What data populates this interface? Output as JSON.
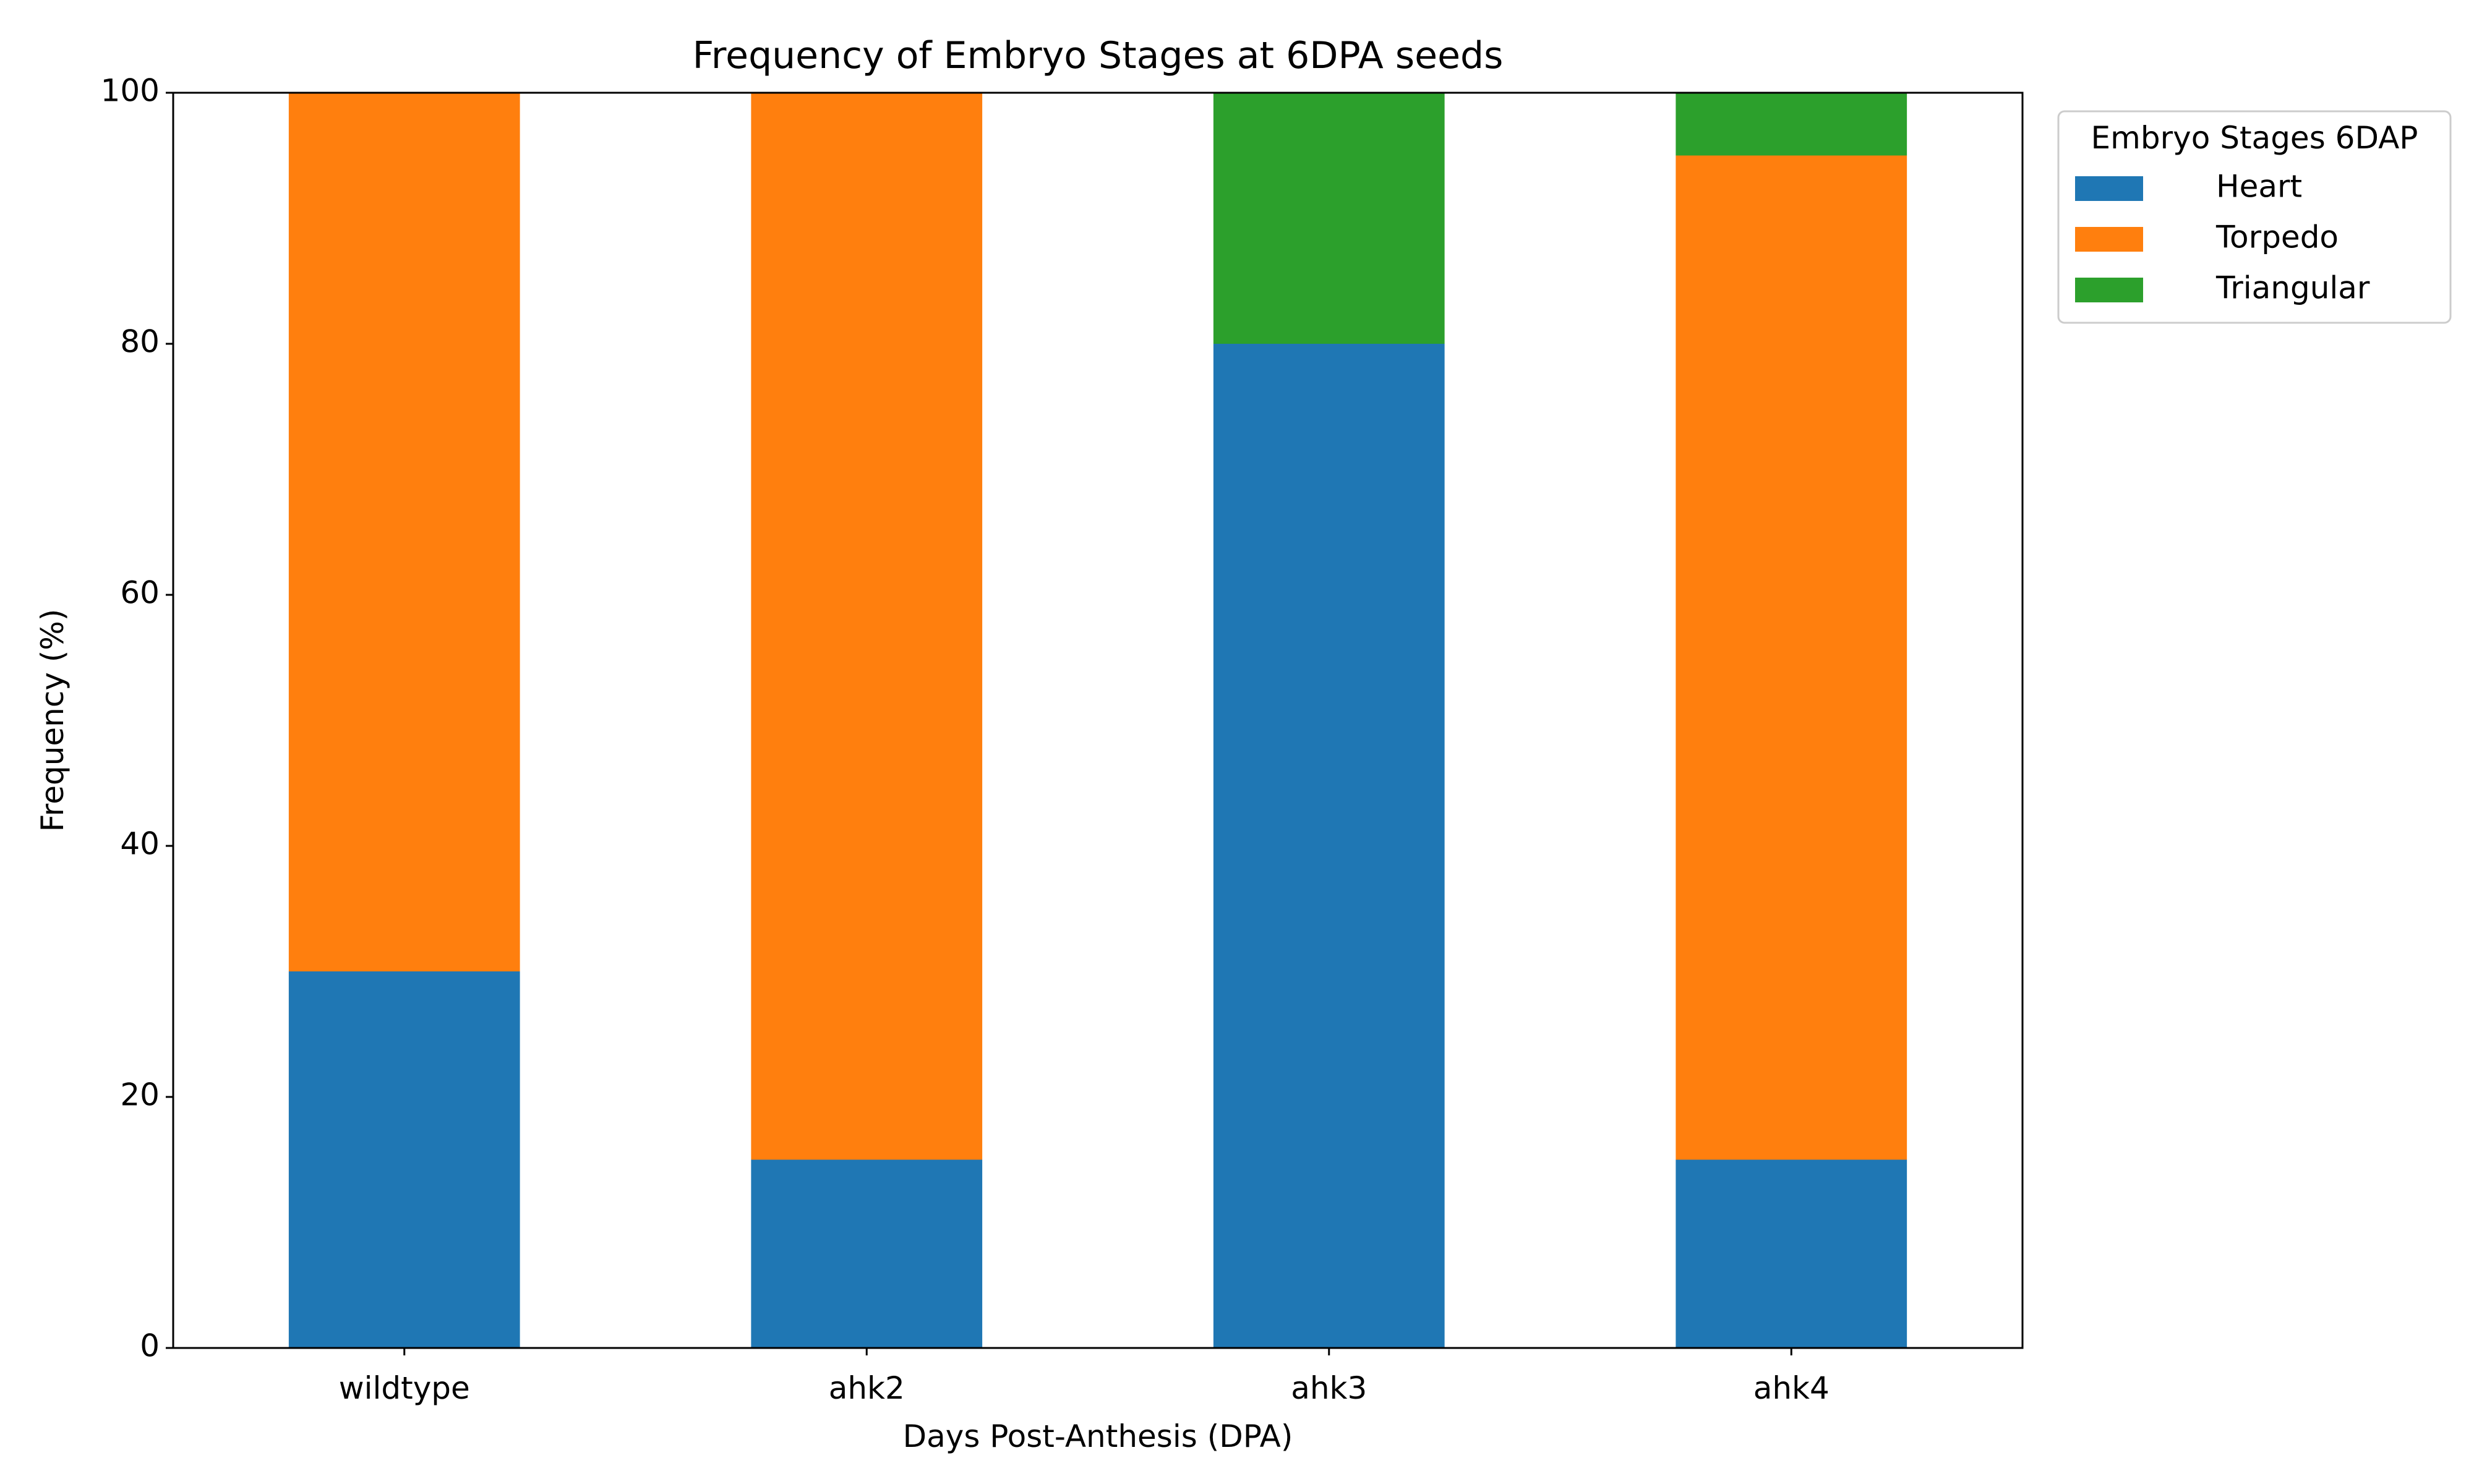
{
  "chart_data": {
    "type": "bar",
    "stacked": true,
    "title": "Frequency of Embryo Stages at 6DPA seeds",
    "xlabel": "Days Post-Anthesis (DPA)",
    "ylabel": "Frequency (%)",
    "ylim": [
      0,
      100
    ],
    "yticks": [
      0,
      20,
      40,
      60,
      80,
      100
    ],
    "grid": false,
    "legend": {
      "title": "Embryo Stages 6DAP",
      "placement": "outside-top-right"
    },
    "categories": [
      "wildtype",
      "ahk2",
      "ahk3",
      "ahk4"
    ],
    "series": [
      {
        "name": "Heart",
        "color": "#1f77b4",
        "values": [
          30,
          15,
          80,
          15
        ]
      },
      {
        "name": "Torpedo",
        "color": "#ff7f0e",
        "values": [
          70,
          85,
          0,
          80
        ]
      },
      {
        "name": "Triangular",
        "color": "#2ca02c",
        "values": [
          0,
          0,
          20,
          5
        ]
      }
    ]
  }
}
